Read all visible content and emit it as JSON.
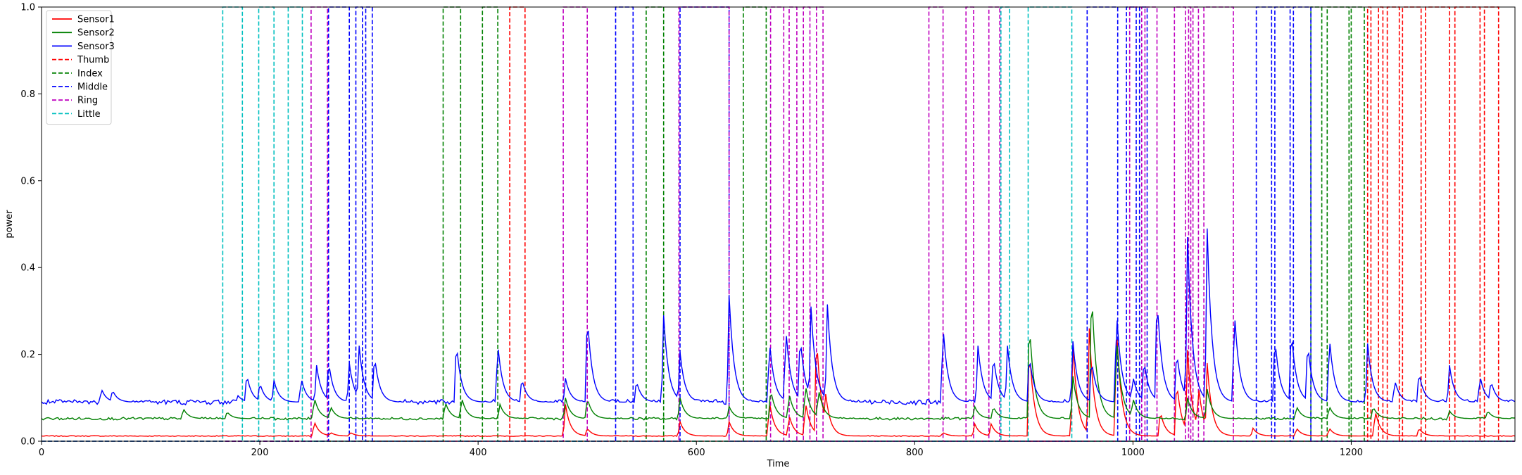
{
  "chart_data": {
    "type": "line",
    "xlabel": "Time",
    "ylabel": "power",
    "xlim": [
      0,
      1350
    ],
    "ylim": [
      0,
      1.0
    ],
    "x_ticks": [
      0,
      200,
      400,
      600,
      800,
      1000,
      1200
    ],
    "y_ticks": [
      0.0,
      0.2,
      0.4,
      0.6,
      0.8,
      1.0
    ],
    "y_tick_labels": [
      "0.0",
      "0.2",
      "0.4",
      "0.6",
      "0.8",
      "1.0"
    ],
    "grid": false,
    "legend_position": "top-left",
    "signal_series": [
      {
        "name": "Sensor1",
        "color": "#ff0000",
        "baseline": 0.012,
        "peaks": [
          [
            250,
            0.045
          ],
          [
            265,
            0.02
          ],
          [
            283,
            0.02
          ],
          [
            480,
            0.085
          ],
          [
            500,
            0.03
          ],
          [
            585,
            0.045
          ],
          [
            630,
            0.045
          ],
          [
            667,
            0.09
          ],
          [
            685,
            0.06
          ],
          [
            700,
            0.09
          ],
          [
            710,
            0.25
          ],
          [
            718,
            0.12
          ],
          [
            826,
            0.02
          ],
          [
            855,
            0.04
          ],
          [
            870,
            0.04
          ],
          [
            905,
            0.22
          ],
          [
            945,
            0.22
          ],
          [
            960,
            0.26
          ],
          [
            985,
            0.26
          ],
          [
            1025,
            0.07
          ],
          [
            1040,
            0.14
          ],
          [
            1050,
            0.21
          ],
          [
            1060,
            0.13
          ],
          [
            1068,
            0.18
          ],
          [
            1110,
            0.03
          ],
          [
            1150,
            0.03
          ],
          [
            1180,
            0.03
          ],
          [
            1222,
            0.07
          ],
          [
            1262,
            0.03
          ]
        ]
      },
      {
        "name": "Sensor2",
        "color": "#008000",
        "baseline": 0.052,
        "peaks": [
          [
            130,
            0.075
          ],
          [
            170,
            0.068
          ],
          [
            250,
            0.1
          ],
          [
            265,
            0.08
          ],
          [
            370,
            0.09
          ],
          [
            385,
            0.1
          ],
          [
            420,
            0.085
          ],
          [
            480,
            0.1
          ],
          [
            500,
            0.1
          ],
          [
            585,
            0.1
          ],
          [
            630,
            0.08
          ],
          [
            668,
            0.12
          ],
          [
            685,
            0.11
          ],
          [
            700,
            0.13
          ],
          [
            712,
            0.12
          ],
          [
            855,
            0.08
          ],
          [
            872,
            0.08
          ],
          [
            905,
            0.28
          ],
          [
            945,
            0.15
          ],
          [
            962,
            0.36
          ],
          [
            985,
            0.24
          ],
          [
            1000,
            0.1
          ],
          [
            1050,
            0.1
          ],
          [
            1068,
            0.12
          ],
          [
            1150,
            0.08
          ],
          [
            1180,
            0.08
          ],
          [
            1220,
            0.08
          ],
          [
            1290,
            0.07
          ],
          [
            1325,
            0.07
          ]
        ]
      },
      {
        "name": "Sensor3",
        "color": "#0000ff",
        "baseline": 0.09,
        "peaks": [
          [
            55,
            0.12
          ],
          [
            65,
            0.118
          ],
          [
            180,
            0.105
          ],
          [
            188,
            0.155
          ],
          [
            200,
            0.135
          ],
          [
            213,
            0.14
          ],
          [
            238,
            0.145
          ],
          [
            252,
            0.175
          ],
          [
            263,
            0.185
          ],
          [
            282,
            0.18
          ],
          [
            291,
            0.22
          ],
          [
            305,
            0.2
          ],
          [
            380,
            0.23
          ],
          [
            418,
            0.225
          ],
          [
            440,
            0.145
          ],
          [
            480,
            0.145
          ],
          [
            500,
            0.295
          ],
          [
            545,
            0.14
          ],
          [
            570,
            0.29
          ],
          [
            585,
            0.205
          ],
          [
            630,
            0.335
          ],
          [
            667,
            0.23
          ],
          [
            682,
            0.26
          ],
          [
            695,
            0.245
          ],
          [
            705,
            0.31
          ],
          [
            720,
            0.315
          ],
          [
            826,
            0.265
          ],
          [
            858,
            0.22
          ],
          [
            872,
            0.2
          ],
          [
            885,
            0.22
          ],
          [
            905,
            0.2
          ],
          [
            945,
            0.23
          ],
          [
            962,
            0.19
          ],
          [
            985,
            0.3
          ],
          [
            1000,
            0.15
          ],
          [
            1010,
            0.19
          ],
          [
            1022,
            0.34
          ],
          [
            1040,
            0.21
          ],
          [
            1050,
            0.47
          ],
          [
            1068,
            0.49
          ],
          [
            1093,
            0.3
          ],
          [
            1130,
            0.24
          ],
          [
            1145,
            0.26
          ],
          [
            1160,
            0.23
          ],
          [
            1180,
            0.24
          ],
          [
            1215,
            0.225
          ],
          [
            1240,
            0.14
          ],
          [
            1262,
            0.16
          ],
          [
            1290,
            0.175
          ],
          [
            1318,
            0.15
          ],
          [
            1328,
            0.14
          ]
        ]
      }
    ],
    "label_series": [
      {
        "name": "Thumb",
        "color": "#ff0000",
        "intervals": [
          [
            429,
            443
          ],
          [
            1215,
            1218
          ],
          [
            1225,
            1229
          ],
          [
            1233,
            1244
          ],
          [
            1247,
            1264
          ],
          [
            1268,
            1290
          ],
          [
            1295,
            1318
          ],
          [
            1322,
            1335
          ]
        ]
      },
      {
        "name": "Index",
        "color": "#008000",
        "intervals": [
          [
            368,
            384
          ],
          [
            404,
            418
          ],
          [
            554,
            570
          ],
          [
            643,
            664
          ],
          [
            1163,
            1173
          ],
          [
            1178,
            1198
          ],
          [
            1200,
            1212
          ]
        ]
      },
      {
        "name": "Middle",
        "color": "#0000ff",
        "intervals": [
          [
            263,
            282
          ],
          [
            288,
            294
          ],
          [
            297,
            303
          ],
          [
            526,
            542
          ],
          [
            585,
            630
          ],
          [
            958,
            986
          ],
          [
            994,
            1003
          ],
          [
            1006,
            1013
          ],
          [
            1113,
            1127
          ],
          [
            1130,
            1144
          ],
          [
            1147,
            1163
          ]
        ]
      },
      {
        "name": "Ring",
        "color": "#bf00bf",
        "intervals": [
          [
            247,
            262
          ],
          [
            478,
            500
          ],
          [
            584,
            630
          ],
          [
            668,
            680
          ],
          [
            685,
            692
          ],
          [
            698,
            704
          ],
          [
            710,
            716
          ],
          [
            813,
            826
          ],
          [
            847,
            854
          ],
          [
            868,
            878
          ],
          [
            997,
            1008
          ],
          [
            1011,
            1022
          ],
          [
            1038,
            1048
          ],
          [
            1051,
            1053
          ],
          [
            1055,
            1060
          ],
          [
            1065,
            1092
          ]
        ]
      },
      {
        "name": "Little",
        "color": "#00bfbf",
        "intervals": [
          [
            166,
            184
          ],
          [
            199,
            213
          ],
          [
            226,
            239
          ],
          [
            879,
            887
          ],
          [
            904,
            944
          ]
        ]
      }
    ],
    "legend_entries": [
      {
        "label": "Sensor1",
        "color": "#ff0000",
        "style": "solid"
      },
      {
        "label": "Sensor2",
        "color": "#008000",
        "style": "solid"
      },
      {
        "label": "Sensor3",
        "color": "#0000ff",
        "style": "solid"
      },
      {
        "label": "Thumb",
        "color": "#ff0000",
        "style": "dashed"
      },
      {
        "label": "Index",
        "color": "#008000",
        "style": "dashed"
      },
      {
        "label": "Middle",
        "color": "#0000ff",
        "style": "dashed"
      },
      {
        "label": "Ring",
        "color": "#bf00bf",
        "style": "dashed"
      },
      {
        "label": "Little",
        "color": "#00bfbf",
        "style": "dashed"
      }
    ]
  }
}
